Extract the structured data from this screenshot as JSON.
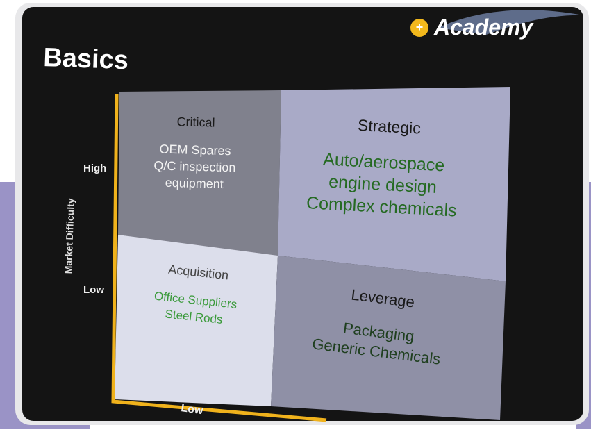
{
  "logo": "Academy",
  "title": "Basics",
  "y_axis": {
    "label": "Market Difficulty",
    "ticks": [
      "High",
      "Low"
    ]
  },
  "x_axis": {
    "ticks": [
      "Low"
    ]
  },
  "quadrants": [
    {
      "title": "Critical",
      "items": [
        "OEM Spares",
        "Q/C inspection",
        "equipment"
      ]
    },
    {
      "title": "Strategic",
      "items": [
        "Auto/aerospace",
        "engine design",
        "Complex chemicals"
      ]
    },
    {
      "title": "Acquisition",
      "items": [
        "Office Suppliers",
        "Steel Rods"
      ]
    },
    {
      "title": "Leverage",
      "items": [
        "Packaging",
        "Generic Chemicals"
      ]
    }
  ]
}
